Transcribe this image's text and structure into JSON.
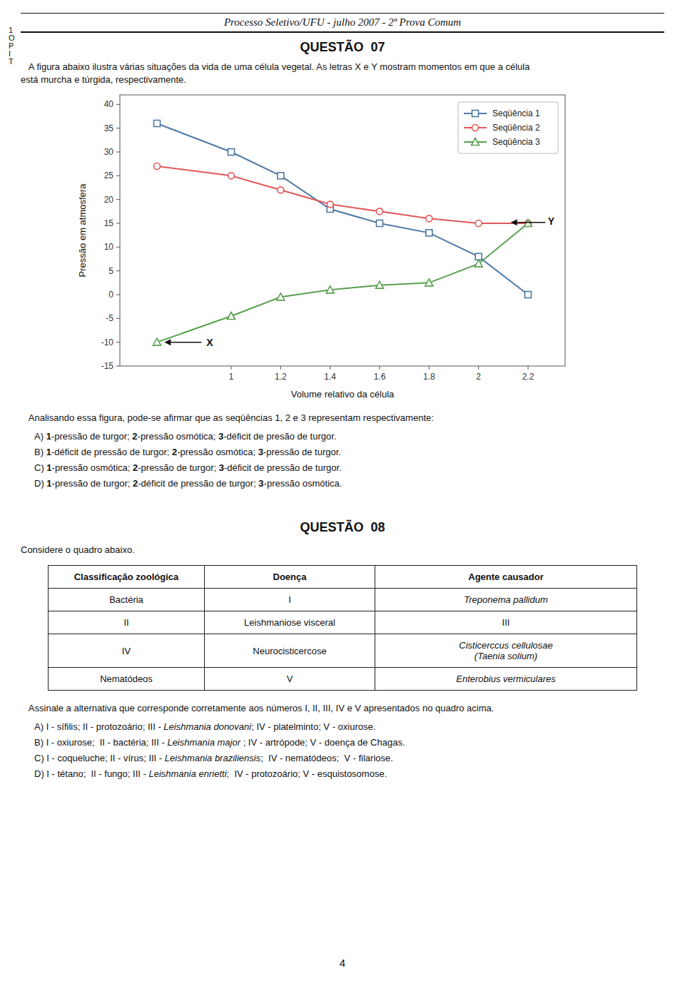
{
  "chart_data": {
    "type": "line",
    "x": [
      0.7,
      1.0,
      1.2,
      1.4,
      1.6,
      1.8,
      2.0,
      2.2
    ],
    "series": [
      {
        "name": "Seqüência 1",
        "color": "#4e79a7",
        "marker": "square",
        "values": [
          36,
          30,
          25,
          18,
          15,
          13,
          8,
          0
        ]
      },
      {
        "name": "Seqüência 2",
        "color": "#e15759",
        "marker": "circle",
        "values": [
          27,
          25,
          22,
          19,
          17.5,
          16,
          15,
          15
        ]
      },
      {
        "name": "Seqüência 3",
        "color": "#59a14f",
        "marker": "triangle",
        "values": [
          -10,
          -4.5,
          -0.5,
          1,
          2,
          2.5,
          6.5,
          15
        ]
      }
    ],
    "xlabel": "Volume relativo da célula",
    "ylabel": "Pressão em atmosfera",
    "xlim": [
      0.55,
      2.35
    ],
    "ylim": [
      -15,
      42
    ],
    "xticks": [
      1,
      1.2,
      1.4,
      1.6,
      1.8,
      2,
      2.2
    ],
    "yticks": [
      -15,
      -10,
      -5,
      0,
      5,
      10,
      15,
      20,
      25,
      30,
      35,
      40
    ],
    "legend": "upper right",
    "grid": false,
    "annotations": [
      {
        "text": "X",
        "x": 0.9,
        "y": -10,
        "arrow_from": [
          0.88,
          -10
        ],
        "arrow_to": [
          0.73,
          -10
        ]
      },
      {
        "text": "Y",
        "x": 2.28,
        "y": 15.5,
        "arrow_from": [
          2.27,
          15.2
        ],
        "arrow_to": [
          2.13,
          15.2
        ]
      }
    ]
  },
  "page": {
    "side_mark": [
      "1",
      "O",
      "P",
      "I",
      "T"
    ],
    "header": "Processo Seletivo/UFU - julho 2007 - 2ª Prova Comum",
    "q07": {
      "title": "QUESTÃO  07",
      "intro": [
        "   A figura abaixo ilustra várias situações da vida de uma célula vegetal. As letras X e Y mostram momentos em que a célula",
        "está murcha e túrgida, respectivamente."
      ],
      "analysis": "   Analisando essa figura, pode-se afirmar que as seqüências 1, 2 e 3 representam respectivamente:",
      "options": [
        [
          {
            "text": "A) "
          },
          {
            "text": "1",
            "bold": true
          },
          {
            "text": "-pressão de turgor; "
          },
          {
            "text": "2",
            "bold": true
          },
          {
            "text": "-pressão osmótica; "
          },
          {
            "text": "3",
            "bold": true
          },
          {
            "text": "-déficit de presão de turgor."
          }
        ],
        [
          {
            "text": "B) "
          },
          {
            "text": "1",
            "bold": true
          },
          {
            "text": "-déficit de pressão de turgor; "
          },
          {
            "text": "2",
            "bold": true
          },
          {
            "text": "-pressão osmótica; "
          },
          {
            "text": "3",
            "bold": true
          },
          {
            "text": "-pressão de turgor."
          }
        ],
        [
          {
            "text": "C) "
          },
          {
            "text": "1",
            "bold": true
          },
          {
            "text": "-pressão osmótica; "
          },
          {
            "text": "2",
            "bold": true
          },
          {
            "text": "-pressão de turgor; "
          },
          {
            "text": "3",
            "bold": true
          },
          {
            "text": "-déficit de pressão de turgor."
          }
        ],
        [
          {
            "text": "D) "
          },
          {
            "text": "1",
            "bold": true
          },
          {
            "text": "-pressão de turgor; "
          },
          {
            "text": "2",
            "bold": true
          },
          {
            "text": "-déficit de pressão de turgor; "
          },
          {
            "text": "3",
            "bold": true
          },
          {
            "text": "-pressão osmótica."
          }
        ]
      ]
    },
    "q08": {
      "title": "QUESTÃO  08",
      "intro": "Considere o quadro abaixo.",
      "table": {
        "headers": [
          "Classificação zoológica",
          "Doença",
          "Agente causador"
        ],
        "rows": [
          [
            {
              "text": "Bactéria"
            },
            {
              "text": "I"
            },
            {
              "text": "Treponema pallidum",
              "italic": true
            }
          ],
          [
            {
              "text": "II"
            },
            {
              "text": "Leishmaniose visceral"
            },
            {
              "text": "III"
            }
          ],
          [
            {
              "text": "IV"
            },
            {
              "text": "Neurocisticercose"
            },
            {
              "text": "Cisticerccus cellulosae\n(Taenia solium)",
              "italic": true
            }
          ],
          [
            {
              "text": "Nematódeos"
            },
            {
              "text": "V"
            },
            {
              "text": "Enterobius vermiculares",
              "italic": true
            }
          ]
        ]
      },
      "analysis": "   Assinale a alternativa que corresponde corretamente aos números I, II, III, IV e V apresentados no quadro acima.",
      "options": [
        [
          {
            "text": "A) "
          },
          {
            "text": "I - sífilis; II - protozoário; III - "
          },
          {
            "text": "Leishmania donovani",
            "italic": true
          },
          {
            "text": "; IV - platelminto; V - oxiurose."
          }
        ],
        [
          {
            "text": "B) "
          },
          {
            "text": "I - oxiurose;  II - bactéria; III - "
          },
          {
            "text": "Leishmania major",
            "italic": true
          },
          {
            "text": " ; IV - artrópode; V - doença de Chagas."
          }
        ],
        [
          {
            "text": "C) "
          },
          {
            "text": "I - coqueluche; II - vírus; III - "
          },
          {
            "text": "Leishmania braziliensis",
            "italic": true
          },
          {
            "text": ";  IV - nematódeos;  V - filariose."
          }
        ],
        [
          {
            "text": "D) "
          },
          {
            "text": "I - tétano;  II - fungo; III - "
          },
          {
            "text": "Leishmania enrietti",
            "italic": true
          },
          {
            "text": ";  IV - protozoário; V - esquistosomose."
          }
        ]
      ]
    },
    "page_number": "4"
  }
}
